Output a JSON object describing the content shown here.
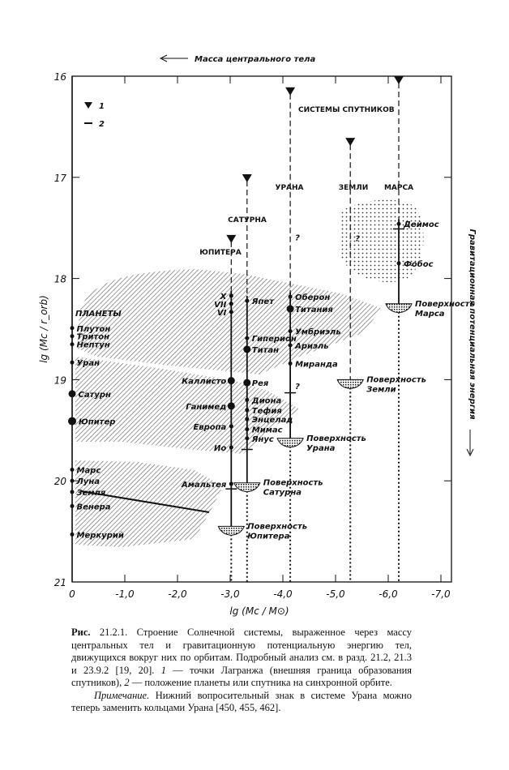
{
  "chart_data": {
    "type": "scatter",
    "title_arrow": "Масса центрального тела",
    "xlabel": "lg (Mc / M⊙)",
    "ylabel": "lg (Mc / r_orb)",
    "right_label": "Гравитационная потенциальная энергия",
    "xlim": [
      0,
      -7.3
    ],
    "ylim": [
      16,
      21
    ],
    "x_ticks": [
      "0",
      "-1,0",
      "-2,0",
      "-3,0",
      "-4,0",
      "-5,0",
      "-6,0",
      "-7,0"
    ],
    "x_tick_values": [
      0,
      -1,
      -2,
      -3,
      -4,
      -5,
      -6,
      -7
    ],
    "y_ticks": [
      "16",
      "17",
      "18",
      "19",
      "20",
      "21"
    ],
    "y_tick_values": [
      16,
      17,
      18,
      19,
      20,
      21
    ],
    "legend": [
      {
        "symbol": "triangle",
        "label": "1"
      },
      {
        "symbol": "dash",
        "label": "2"
      }
    ],
    "header_label": "СИСТЕМЫ СПУТНИКОВ",
    "planets_label": "ПЛАНЕТЫ",
    "planets": [
      {
        "name": "Плутон",
        "x": 0,
        "y": 18.49
      },
      {
        "name": "Тритон",
        "x": 0,
        "y": 18.57
      },
      {
        "name": "Нептун",
        "x": 0,
        "y": 18.65
      },
      {
        "name": "Уран",
        "x": 0,
        "y": 18.83
      },
      {
        "name": "Сатурн",
        "x": 0,
        "y": 19.14
      },
      {
        "name": "Юпитер",
        "x": 0,
        "y": 19.41
      },
      {
        "name": "Марс",
        "x": 0,
        "y": 19.89
      },
      {
        "name": "Луна",
        "x": 0,
        "y": 20.0
      },
      {
        "name": "Земля",
        "x": 0,
        "y": 20.11
      },
      {
        "name": "Венера",
        "x": 0,
        "y": 20.25
      },
      {
        "name": "Меркурий",
        "x": 0,
        "y": 20.53
      }
    ],
    "systems": [
      {
        "name": "ЮПИТЕРА",
        "x": -3.02,
        "lagrange": 17.57,
        "sync": 20.08,
        "surface": 20.45,
        "surface_label": [
          "Поверхность",
          "Юпитера"
        ],
        "label_side": "left",
        "moons": [
          {
            "name": "X",
            "y": 18.17
          },
          {
            "name": "VII",
            "y": 18.25
          },
          {
            "name": "VI",
            "y": 18.33
          },
          {
            "name": "Каллисто",
            "y": 19.01
          },
          {
            "name": "Ганимед",
            "y": 19.26
          },
          {
            "name": "Европа",
            "y": 19.46
          },
          {
            "name": "Ио",
            "y": 19.67
          },
          {
            "name": "Амальтея",
            "y": 20.03
          }
        ]
      },
      {
        "name": "САТУРНА",
        "x": -3.32,
        "lagrange": 16.97,
        "sync": 19.69,
        "surface": 20.02,
        "surface_label": [
          "Поверхность",
          "Сатурна"
        ],
        "label_side": "right",
        "moons": [
          {
            "name": "Япет",
            "y": 18.22
          },
          {
            "name": "Гиперион",
            "y": 18.59
          },
          {
            "name": "Титан",
            "y": 18.7
          },
          {
            "name": "Рея",
            "y": 19.03
          },
          {
            "name": "Диона",
            "y": 19.2
          },
          {
            "name": "Тефия",
            "y": 19.3
          },
          {
            "name": "Энцелад",
            "y": 19.39
          },
          {
            "name": "Мимас",
            "y": 19.49
          },
          {
            "name": "Янус",
            "y": 19.58
          }
        ]
      },
      {
        "name": "УРАНА",
        "x": -4.14,
        "lagrange": 16.11,
        "sync": 19.13,
        "surface": 19.58,
        "surface_label": [
          "Поверхность",
          "Урана"
        ],
        "label_side": "right",
        "moons": [
          {
            "name": "Оберон",
            "y": 18.18
          },
          {
            "name": "Титания",
            "y": 18.3
          },
          {
            "name": "Умбриэль",
            "y": 18.52
          },
          {
            "name": "Ариэль",
            "y": 18.66
          },
          {
            "name": "Миранда",
            "y": 18.84
          }
        ],
        "question_marks": [
          17.59,
          19.06
        ]
      },
      {
        "name": "ЗЕМЛИ",
        "x": -5.28,
        "lagrange": 16.61,
        "surface": 19.0,
        "surface_label": [
          "Поверхность",
          "Земли"
        ],
        "label_side": "right",
        "moons": [],
        "question_marks": [
          17.6
        ]
      },
      {
        "name": "МАРСА",
        "x": -6.2,
        "lagrange": 16.0,
        "sync": 17.51,
        "surface": 18.25,
        "surface_label": [
          "Поверхность",
          "Марса"
        ],
        "label_side": "right",
        "moons": [
          {
            "name": "Деймос",
            "y": 17.46
          },
          {
            "name": "Фобос",
            "y": 17.85
          }
        ]
      }
    ]
  },
  "caption": {
    "fig": "Рис.",
    "text": "21.2.1. Строение Солнечной системы, выраженное через массу центральных тел и гравитационную потенциальную энергию тел, движущихся вокруг них по орбитам. Подробный анализ см. в разд. 21.2, 21.3 и 23.9.2 [19, 20].",
    "legend_text_1": "1",
    "legend_text_2": " — точки Лагранжа (внешняя граница образования спутников), ",
    "legend_text_3": "2",
    "legend_text_4": " — положение планеты или спутника на синхронной орбите.",
    "note_label": "Примечание.",
    "note_text": " Нижний вопросительный знак в системе Урана можно теперь заменить кольцами Урана [450, 455, 462]."
  }
}
